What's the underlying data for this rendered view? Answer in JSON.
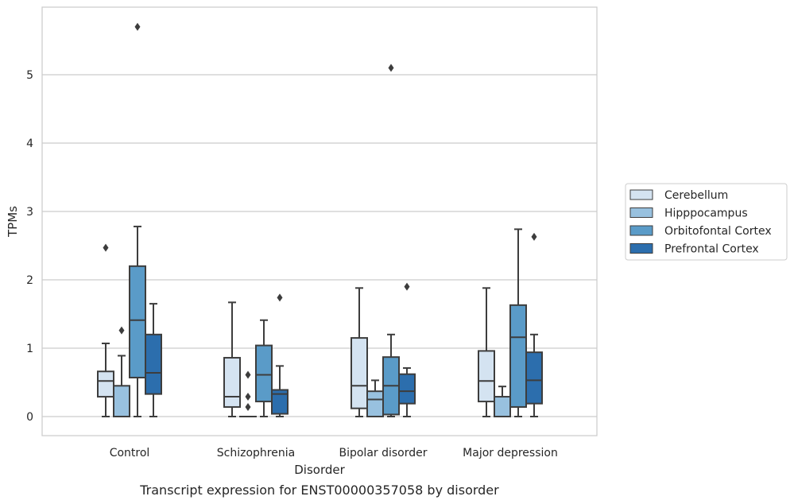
{
  "chart_data": {
    "type": "box",
    "title": "",
    "caption": "Transcript expression for ENST00000357058 by disorder",
    "xlabel": "Disorder",
    "ylabel": "TPMs",
    "ylim": [
      -0.28,
      5.98
    ],
    "yticks": [
      0,
      1,
      2,
      3,
      4,
      5
    ],
    "grid": "horizontal",
    "legend_position": "right",
    "categories": [
      "Control",
      "Schizophrenia",
      "Bipolar disorder",
      "Major depression"
    ],
    "series": [
      {
        "name": "Cerebellum",
        "color": "#d4e3f1",
        "boxes": [
          {
            "whislo": 0.0,
            "q1": 0.29,
            "med": 0.52,
            "q3": 0.66,
            "whishi": 1.07,
            "fliers": [
              2.47
            ]
          },
          {
            "whislo": 0.0,
            "q1": 0.14,
            "med": 0.29,
            "q3": 0.86,
            "whishi": 1.67,
            "fliers": []
          },
          {
            "whislo": 0.0,
            "q1": 0.12,
            "med": 0.45,
            "q3": 1.15,
            "whishi": 1.88,
            "fliers": []
          },
          {
            "whislo": 0.0,
            "q1": 0.22,
            "med": 0.52,
            "q3": 0.96,
            "whishi": 1.88,
            "fliers": []
          }
        ]
      },
      {
        "name": "Hipppocampus",
        "color": "#98c1df",
        "boxes": [
          {
            "whislo": 0.0,
            "q1": 0.0,
            "med": 0.0,
            "q3": 0.45,
            "whishi": 0.89,
            "fliers": [
              1.26
            ]
          },
          {
            "whislo": 0.0,
            "q1": 0.0,
            "med": 0.0,
            "q3": 0.0,
            "whishi": 0.0,
            "fliers": [
              0.14,
              0.29,
              0.61
            ]
          },
          {
            "whislo": 0.0,
            "q1": 0.0,
            "med": 0.25,
            "q3": 0.37,
            "whishi": 0.53,
            "fliers": []
          },
          {
            "whislo": 0.0,
            "q1": 0.0,
            "med": 0.0,
            "q3": 0.29,
            "whishi": 0.44,
            "fliers": []
          }
        ]
      },
      {
        "name": "Orbitofontal Cortex",
        "color": "#5a9bc8",
        "boxes": [
          {
            "whislo": 0.0,
            "q1": 0.57,
            "med": 1.41,
            "q3": 2.2,
            "whishi": 2.78,
            "fliers": [
              5.7
            ]
          },
          {
            "whislo": 0.0,
            "q1": 0.22,
            "med": 0.61,
            "q3": 1.04,
            "whishi": 1.41,
            "fliers": []
          },
          {
            "whislo": 0.0,
            "q1": 0.03,
            "med": 0.45,
            "q3": 0.87,
            "whishi": 1.2,
            "fliers": [
              5.1
            ]
          },
          {
            "whislo": 0.0,
            "q1": 0.14,
            "med": 1.16,
            "q3": 1.63,
            "whishi": 2.74,
            "fliers": []
          }
        ]
      },
      {
        "name": "Prefrontal Cortex",
        "color": "#2c6ead",
        "boxes": [
          {
            "whislo": 0.0,
            "q1": 0.33,
            "med": 0.64,
            "q3": 1.2,
            "whishi": 1.65,
            "fliers": []
          },
          {
            "whislo": 0.0,
            "q1": 0.04,
            "med": 0.33,
            "q3": 0.39,
            "whishi": 0.74,
            "fliers": [
              1.74
            ]
          },
          {
            "whislo": 0.0,
            "q1": 0.19,
            "med": 0.37,
            "q3": 0.62,
            "whishi": 0.71,
            "fliers": [
              1.9
            ]
          },
          {
            "whislo": 0.0,
            "q1": 0.19,
            "med": 0.53,
            "q3": 0.94,
            "whishi": 1.2,
            "fliers": [
              2.63
            ]
          }
        ]
      }
    ]
  }
}
